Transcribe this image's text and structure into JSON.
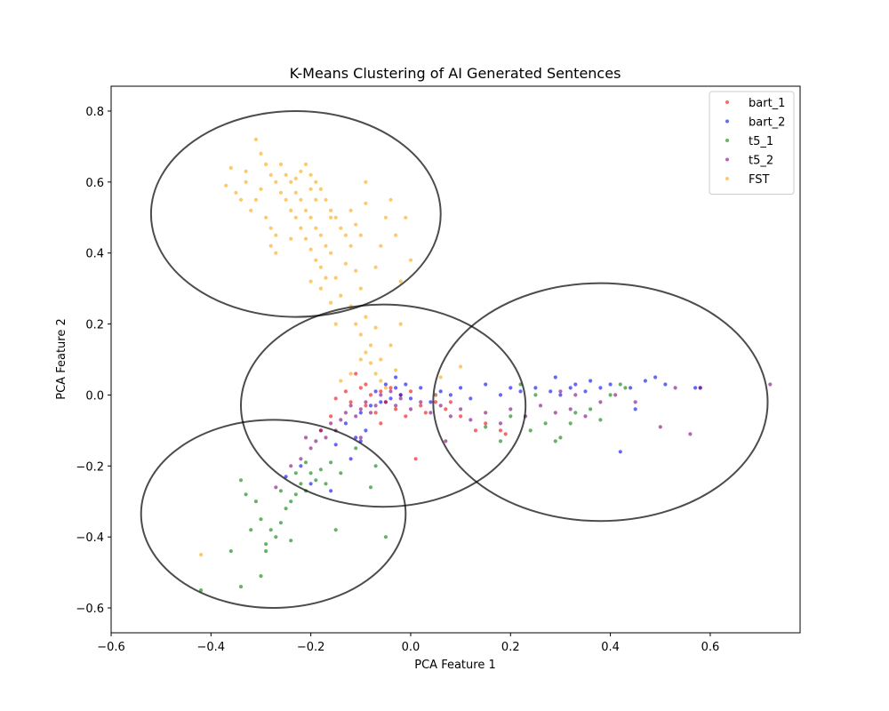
{
  "chart_data": {
    "type": "scatter",
    "title": "K-Means Clustering of AI Generated Sentences",
    "xlabel": "PCA Feature 1",
    "ylabel": "PCA Feature 2",
    "xlim": [
      -0.6,
      0.78
    ],
    "ylim": [
      -0.67,
      0.87
    ],
    "xticks": [
      -0.6,
      -0.4,
      -0.2,
      0.0,
      0.2,
      0.4,
      0.6
    ],
    "yticks": [
      -0.6,
      -0.4,
      -0.2,
      0.0,
      0.2,
      0.4,
      0.6,
      0.8
    ],
    "xtick_labels": [
      "−0.6",
      "−0.4",
      "−0.2",
      "0.0",
      "0.2",
      "0.4",
      "0.6"
    ],
    "ytick_labels": [
      "−0.6",
      "−0.4",
      "−0.2",
      "0.0",
      "0.2",
      "0.4",
      "0.6",
      "0.8"
    ],
    "grid": false,
    "legend_position": "top-right",
    "series": [
      {
        "name": "bart_1",
        "color": "#ff0000",
        "points": [
          [
            -0.15,
            -0.01
          ],
          [
            -0.13,
            0.01
          ],
          [
            -0.12,
            -0.02
          ],
          [
            -0.1,
            0.02
          ],
          [
            -0.09,
            -0.03
          ],
          [
            -0.08,
            0.0
          ],
          [
            -0.07,
            -0.05
          ],
          [
            -0.06,
            0.01
          ],
          [
            -0.05,
            -0.02
          ],
          [
            -0.04,
            0.02
          ],
          [
            -0.03,
            -0.04
          ],
          [
            -0.02,
            0.0
          ],
          [
            -0.01,
            -0.06
          ],
          [
            0.0,
            0.01
          ],
          [
            0.02,
            -0.03
          ],
          [
            0.05,
            -0.02
          ],
          [
            0.07,
            -0.04
          ],
          [
            0.1,
            -0.06
          ],
          [
            0.13,
            -0.1
          ],
          [
            0.15,
            -0.08
          ],
          [
            0.18,
            -0.1
          ],
          [
            -0.11,
            0.06
          ],
          [
            -0.18,
            -0.1
          ],
          [
            -0.16,
            -0.06
          ],
          [
            0.01,
            -0.18
          ],
          [
            0.03,
            -0.05
          ],
          [
            -0.09,
            0.03
          ],
          [
            0.08,
            -0.02
          ],
          [
            0.19,
            -0.11
          ],
          [
            -0.06,
            -0.08
          ]
        ]
      },
      {
        "name": "bart_2",
        "color": "#0000ff",
        "points": [
          [
            -0.13,
            -0.08
          ],
          [
            -0.11,
            -0.12
          ],
          [
            -0.1,
            -0.05
          ],
          [
            -0.09,
            -0.1
          ],
          [
            -0.08,
            -0.03
          ],
          [
            -0.07,
            0.01
          ],
          [
            -0.06,
            -0.02
          ],
          [
            -0.05,
            0.03
          ],
          [
            -0.04,
            -0.01
          ],
          [
            -0.03,
            0.02
          ],
          [
            -0.02,
            0.0
          ],
          [
            -0.01,
            0.03
          ],
          [
            0.0,
            -0.01
          ],
          [
            0.02,
            0.02
          ],
          [
            0.04,
            -0.02
          ],
          [
            0.06,
            0.01
          ],
          [
            0.08,
            0.0
          ],
          [
            0.1,
            0.02
          ],
          [
            0.12,
            -0.01
          ],
          [
            0.15,
            0.03
          ],
          [
            0.18,
            0.0
          ],
          [
            0.2,
            0.02
          ],
          [
            0.22,
            0.01
          ],
          [
            0.25,
            0.02
          ],
          [
            0.28,
            0.01
          ],
          [
            0.3,
            0.0
          ],
          [
            0.33,
            0.03
          ],
          [
            0.35,
            0.01
          ],
          [
            0.38,
            0.02
          ],
          [
            0.4,
            0.03
          ],
          [
            0.44,
            0.02
          ],
          [
            0.47,
            0.04
          ],
          [
            0.49,
            0.05
          ],
          [
            0.51,
            0.03
          ],
          [
            0.57,
            0.02
          ],
          [
            0.58,
            0.02
          ],
          [
            -0.12,
            -0.18
          ],
          [
            -0.15,
            -0.14
          ],
          [
            -0.2,
            -0.25
          ],
          [
            -0.22,
            -0.2
          ],
          [
            -0.25,
            -0.23
          ],
          [
            -0.16,
            -0.27
          ],
          [
            -0.1,
            -0.13
          ],
          [
            -0.03,
            0.05
          ],
          [
            0.45,
            -0.04
          ],
          [
            0.42,
            -0.16
          ],
          [
            0.29,
            0.05
          ],
          [
            0.32,
            0.02
          ],
          [
            0.36,
            0.04
          ],
          [
            0.05,
            0.0
          ]
        ]
      },
      {
        "name": "t5_1",
        "color": "#008000",
        "points": [
          [
            -0.42,
            -0.55
          ],
          [
            -0.34,
            -0.54
          ],
          [
            -0.3,
            -0.51
          ],
          [
            -0.29,
            -0.44
          ],
          [
            -0.32,
            -0.38
          ],
          [
            -0.3,
            -0.35
          ],
          [
            -0.28,
            -0.38
          ],
          [
            -0.26,
            -0.36
          ],
          [
            -0.25,
            -0.32
          ],
          [
            -0.24,
            -0.3
          ],
          [
            -0.23,
            -0.28
          ],
          [
            -0.22,
            -0.25
          ],
          [
            -0.21,
            -0.27
          ],
          [
            -0.2,
            -0.22
          ],
          [
            -0.19,
            -0.24
          ],
          [
            -0.18,
            -0.21
          ],
          [
            -0.17,
            -0.25
          ],
          [
            -0.16,
            -0.19
          ],
          [
            -0.27,
            -0.4
          ],
          [
            -0.24,
            -0.41
          ],
          [
            -0.33,
            -0.28
          ],
          [
            -0.34,
            -0.24
          ],
          [
            -0.31,
            -0.3
          ],
          [
            -0.36,
            -0.44
          ],
          [
            -0.15,
            -0.38
          ],
          [
            -0.08,
            -0.26
          ],
          [
            -0.05,
            -0.4
          ],
          [
            -0.11,
            -0.15
          ],
          [
            -0.21,
            -0.19
          ],
          [
            -0.26,
            -0.27
          ],
          [
            0.2,
            -0.06
          ],
          [
            0.24,
            -0.1
          ],
          [
            0.27,
            -0.08
          ],
          [
            0.3,
            -0.12
          ],
          [
            0.33,
            -0.05
          ],
          [
            0.36,
            -0.04
          ],
          [
            0.38,
            -0.07
          ],
          [
            0.4,
            0.0
          ],
          [
            0.42,
            0.03
          ],
          [
            0.43,
            0.02
          ],
          [
            0.22,
            0.03
          ],
          [
            0.25,
            0.0
          ],
          [
            0.29,
            -0.13
          ],
          [
            0.32,
            -0.08
          ],
          [
            0.15,
            -0.09
          ],
          [
            0.18,
            -0.13
          ],
          [
            -0.07,
            -0.2
          ],
          [
            -0.14,
            -0.22
          ],
          [
            -0.23,
            -0.22
          ],
          [
            -0.29,
            -0.42
          ]
        ]
      },
      {
        "name": "t5_2",
        "color": "#800080",
        "points": [
          [
            -0.21,
            -0.12
          ],
          [
            -0.2,
            -0.15
          ],
          [
            -0.19,
            -0.13
          ],
          [
            -0.18,
            -0.1
          ],
          [
            -0.17,
            -0.12
          ],
          [
            -0.16,
            -0.08
          ],
          [
            -0.15,
            -0.1
          ],
          [
            -0.14,
            -0.07
          ],
          [
            -0.13,
            -0.05
          ],
          [
            -0.12,
            -0.03
          ],
          [
            -0.11,
            -0.06
          ],
          [
            -0.1,
            -0.04
          ],
          [
            -0.09,
            -0.02
          ],
          [
            -0.08,
            -0.05
          ],
          [
            -0.07,
            -0.03
          ],
          [
            -0.06,
            0.0
          ],
          [
            -0.05,
            -0.02
          ],
          [
            -0.04,
            0.01
          ],
          [
            -0.03,
            -0.03
          ],
          [
            -0.02,
            -0.01
          ],
          [
            0.0,
            -0.04
          ],
          [
            0.02,
            -0.02
          ],
          [
            0.04,
            -0.05
          ],
          [
            0.06,
            -0.03
          ],
          [
            0.08,
            -0.06
          ],
          [
            0.1,
            -0.04
          ],
          [
            0.12,
            -0.07
          ],
          [
            0.15,
            -0.05
          ],
          [
            0.18,
            -0.08
          ],
          [
            0.2,
            -0.04
          ],
          [
            0.23,
            -0.06
          ],
          [
            0.26,
            -0.03
          ],
          [
            0.29,
            -0.05
          ],
          [
            0.32,
            -0.04
          ],
          [
            0.35,
            -0.06
          ],
          [
            0.38,
            -0.02
          ],
          [
            0.41,
            0.0
          ],
          [
            0.45,
            -0.02
          ],
          [
            0.5,
            -0.09
          ],
          [
            0.53,
            0.02
          ],
          [
            0.56,
            -0.11
          ],
          [
            0.58,
            0.02
          ],
          [
            0.72,
            0.03
          ],
          [
            -0.27,
            -0.26
          ],
          [
            -0.24,
            -0.2
          ],
          [
            -0.22,
            -0.18
          ],
          [
            -0.1,
            -0.12
          ],
          [
            0.07,
            -0.13
          ],
          [
            0.3,
            0.01
          ],
          [
            0.33,
            0.0
          ]
        ]
      },
      {
        "name": "FST",
        "color": "#ffa500",
        "points": [
          [
            -0.31,
            0.72
          ],
          [
            -0.3,
            0.68
          ],
          [
            -0.29,
            0.65
          ],
          [
            -0.28,
            0.62
          ],
          [
            -0.27,
            0.6
          ],
          [
            -0.26,
            0.57
          ],
          [
            -0.25,
            0.55
          ],
          [
            -0.24,
            0.52
          ],
          [
            -0.23,
            0.5
          ],
          [
            -0.22,
            0.47
          ],
          [
            -0.21,
            0.44
          ],
          [
            -0.2,
            0.41
          ],
          [
            -0.19,
            0.38
          ],
          [
            -0.18,
            0.36
          ],
          [
            -0.17,
            0.33
          ],
          [
            -0.3,
            0.58
          ],
          [
            -0.31,
            0.55
          ],
          [
            -0.32,
            0.52
          ],
          [
            -0.29,
            0.5
          ],
          [
            -0.28,
            0.47
          ],
          [
            -0.27,
            0.45
          ],
          [
            -0.33,
            0.6
          ],
          [
            -0.35,
            0.57
          ],
          [
            -0.34,
            0.55
          ],
          [
            -0.26,
            0.65
          ],
          [
            -0.25,
            0.62
          ],
          [
            -0.24,
            0.6
          ],
          [
            -0.23,
            0.57
          ],
          [
            -0.22,
            0.55
          ],
          [
            -0.21,
            0.52
          ],
          [
            -0.2,
            0.5
          ],
          [
            -0.19,
            0.47
          ],
          [
            -0.18,
            0.45
          ],
          [
            -0.17,
            0.42
          ],
          [
            -0.16,
            0.4
          ],
          [
            -0.21,
            0.65
          ],
          [
            -0.2,
            0.62
          ],
          [
            -0.19,
            0.6
          ],
          [
            -0.18,
            0.58
          ],
          [
            -0.17,
            0.55
          ],
          [
            -0.16,
            0.52
          ],
          [
            -0.15,
            0.5
          ],
          [
            -0.14,
            0.47
          ],
          [
            -0.13,
            0.45
          ],
          [
            -0.12,
            0.42
          ],
          [
            -0.22,
            0.63
          ],
          [
            -0.23,
            0.61
          ],
          [
            -0.2,
            0.58
          ],
          [
            -0.19,
            0.55
          ],
          [
            -0.16,
            0.5
          ],
          [
            -0.1,
            0.3
          ],
          [
            -0.11,
            0.35
          ],
          [
            -0.13,
            0.37
          ],
          [
            -0.15,
            0.33
          ],
          [
            -0.14,
            0.28
          ],
          [
            -0.12,
            0.25
          ],
          [
            -0.11,
            0.2
          ],
          [
            -0.1,
            0.17
          ],
          [
            -0.09,
            0.12
          ],
          [
            -0.08,
            0.09
          ],
          [
            -0.07,
            0.06
          ],
          [
            -0.06,
            0.04
          ],
          [
            -0.08,
            0.14
          ],
          [
            -0.1,
            0.1
          ],
          [
            -0.12,
            0.06
          ],
          [
            -0.14,
            0.04
          ],
          [
            -0.05,
            0.02
          ],
          [
            -0.09,
            0.22
          ],
          [
            -0.07,
            0.19
          ],
          [
            -0.15,
            0.2
          ],
          [
            -0.16,
            0.26
          ],
          [
            -0.18,
            0.3
          ],
          [
            -0.2,
            0.32
          ],
          [
            -0.09,
            0.6
          ],
          [
            -0.09,
            0.54
          ],
          [
            -0.1,
            0.45
          ],
          [
            -0.04,
            0.55
          ],
          [
            -0.05,
            0.5
          ],
          [
            -0.06,
            0.42
          ],
          [
            -0.03,
            0.45
          ],
          [
            -0.01,
            0.5
          ],
          [
            0.0,
            0.38
          ],
          [
            -0.02,
            0.32
          ],
          [
            -0.07,
            0.36
          ],
          [
            -0.12,
            0.52
          ],
          [
            -0.33,
            0.63
          ],
          [
            -0.36,
            0.64
          ],
          [
            -0.37,
            0.59
          ],
          [
            -0.28,
            0.42
          ],
          [
            -0.27,
            0.4
          ],
          [
            -0.24,
            0.44
          ],
          [
            -0.02,
            0.2
          ],
          [
            0.05,
            0.0
          ],
          [
            0.1,
            0.08
          ],
          [
            0.06,
            0.05
          ],
          [
            -0.42,
            -0.45
          ],
          [
            -0.03,
            0.07
          ],
          [
            -0.06,
            0.1
          ],
          [
            -0.04,
            0.14
          ],
          [
            -0.11,
            0.48
          ]
        ]
      }
    ],
    "clusters": [
      {
        "cx": -0.23,
        "cy": 0.51,
        "rx": 0.29,
        "ry": 0.29
      },
      {
        "cx": -0.055,
        "cy": -0.03,
        "rx": 0.285,
        "ry": 0.285
      },
      {
        "cx": 0.38,
        "cy": -0.02,
        "rx": 0.335,
        "ry": 0.335
      },
      {
        "cx": -0.275,
        "cy": -0.335,
        "rx": 0.265,
        "ry": 0.265
      }
    ]
  }
}
